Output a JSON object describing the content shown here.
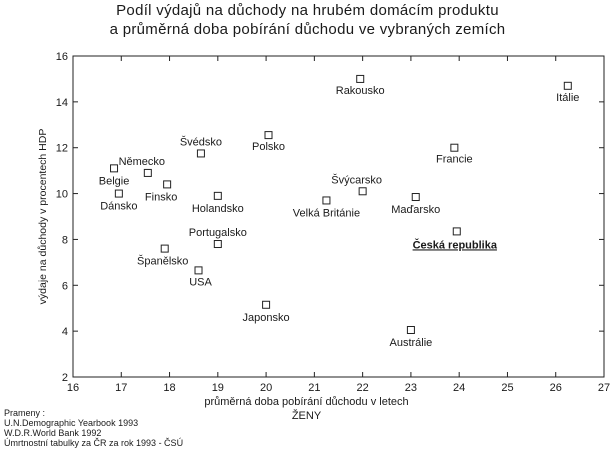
{
  "chart_data": {
    "type": "scatter",
    "title": "Podíl výdajů na důchody na hrubém domácím produktu",
    "subtitle": "a průměrná doba pobírání důchodu ve vybraných zemích",
    "xlabel": "průměrná doba pobírání důchodu v letech",
    "xlabel2": "ŽENY",
    "ylabel": "výdaje na důchody v procentech HDP",
    "xlim": [
      16,
      27
    ],
    "ylim": [
      2,
      16
    ],
    "xticks": [
      16,
      17,
      18,
      19,
      20,
      21,
      22,
      23,
      24,
      25,
      26,
      27
    ],
    "yticks": [
      2,
      4,
      6,
      8,
      10,
      12,
      14,
      16
    ],
    "grid": false,
    "points": [
      {
        "label": "Rakousko",
        "x": 21.95,
        "y": 15.0
      },
      {
        "label": "Itálie",
        "x": 26.25,
        "y": 14.7
      },
      {
        "label": "Polsko",
        "x": 20.05,
        "y": 12.55
      },
      {
        "label": "Švédsko",
        "x": 18.65,
        "y": 11.75
      },
      {
        "label": "Francie",
        "x": 23.9,
        "y": 12.0
      },
      {
        "label": "Belgie",
        "x": 16.85,
        "y": 11.1
      },
      {
        "label": "Německo",
        "x": 17.55,
        "y": 10.9
      },
      {
        "label": "Finsko",
        "x": 17.95,
        "y": 10.4
      },
      {
        "label": "Dánsko",
        "x": 16.95,
        "y": 10.0
      },
      {
        "label": "Holandsko",
        "x": 19.0,
        "y": 9.9
      },
      {
        "label": "Švýcarsko",
        "x": 22.0,
        "y": 10.1
      },
      {
        "label": "Velká Británie",
        "x": 21.25,
        "y": 9.7
      },
      {
        "label": "Maďarsko",
        "x": 23.1,
        "y": 9.85
      },
      {
        "label": "Česká republika",
        "x": 23.95,
        "y": 8.35,
        "highlight": true
      },
      {
        "label": "Portugalsko",
        "x": 19.0,
        "y": 7.8
      },
      {
        "label": "Španělsko",
        "x": 17.9,
        "y": 7.6
      },
      {
        "label": "USA",
        "x": 18.6,
        "y": 6.65
      },
      {
        "label": "Japonsko",
        "x": 20.0,
        "y": 5.15
      },
      {
        "label": "Austrálie",
        "x": 23.0,
        "y": 4.05
      }
    ]
  },
  "sources": {
    "heading": "Prameny :",
    "lines": [
      "U.N.Demographic Yearbook  1993",
      "W.D.R.World Bank 1992",
      "Úmrtnostní tabulky za ČR za rok 1993  - ČSÚ"
    ]
  }
}
